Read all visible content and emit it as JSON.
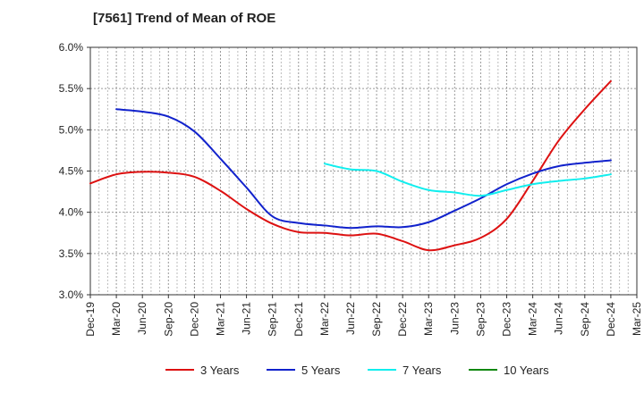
{
  "chart_data": {
    "type": "line",
    "title": "[7561]  Trend of Mean of ROE",
    "xlabel": "",
    "ylabel": "",
    "ylim": [
      3.0,
      6.0
    ],
    "y_ticks": [
      3.0,
      3.5,
      4.0,
      4.5,
      5.0,
      5.5,
      6.0
    ],
    "y_tick_labels": [
      "3.0%",
      "3.5%",
      "4.0%",
      "4.5%",
      "5.0%",
      "5.5%",
      "6.0%"
    ],
    "categories": [
      "Dec-19",
      "Mar-20",
      "Jun-20",
      "Sep-20",
      "Dec-20",
      "Mar-21",
      "Jun-21",
      "Sep-21",
      "Dec-21",
      "Mar-22",
      "Jun-22",
      "Sep-22",
      "Dec-22",
      "Mar-23",
      "Jun-23",
      "Sep-23",
      "Dec-23",
      "Mar-24",
      "Jun-24",
      "Sep-24",
      "Dec-24",
      "Mar-25"
    ],
    "grid": true,
    "legend_position": "bottom",
    "series": [
      {
        "name": "3 Years",
        "color": "#dd1111",
        "values": [
          4.35,
          4.46,
          4.49,
          4.48,
          4.43,
          4.26,
          4.04,
          3.86,
          3.76,
          3.75,
          3.72,
          3.74,
          3.65,
          3.54,
          3.6,
          3.69,
          3.92,
          4.38,
          4.87,
          5.25,
          5.59,
          null
        ]
      },
      {
        "name": "5 Years",
        "color": "#1122cc",
        "values": [
          null,
          5.25,
          5.22,
          5.16,
          4.98,
          4.65,
          4.3,
          3.95,
          3.87,
          3.84,
          3.81,
          3.83,
          3.82,
          3.88,
          4.02,
          4.17,
          4.34,
          4.47,
          4.56,
          4.6,
          4.63,
          null
        ]
      },
      {
        "name": "7 Years",
        "color": "#11eeee",
        "values": [
          null,
          null,
          null,
          null,
          null,
          null,
          null,
          null,
          null,
          4.59,
          4.52,
          4.5,
          4.37,
          4.27,
          4.24,
          4.2,
          4.27,
          4.34,
          4.38,
          4.41,
          4.46,
          null
        ]
      },
      {
        "name": "10 Years",
        "color": "#118811",
        "values": [
          null,
          null,
          null,
          null,
          null,
          null,
          null,
          null,
          null,
          null,
          null,
          null,
          null,
          null,
          null,
          null,
          null,
          null,
          null,
          null,
          null,
          null
        ]
      }
    ]
  }
}
